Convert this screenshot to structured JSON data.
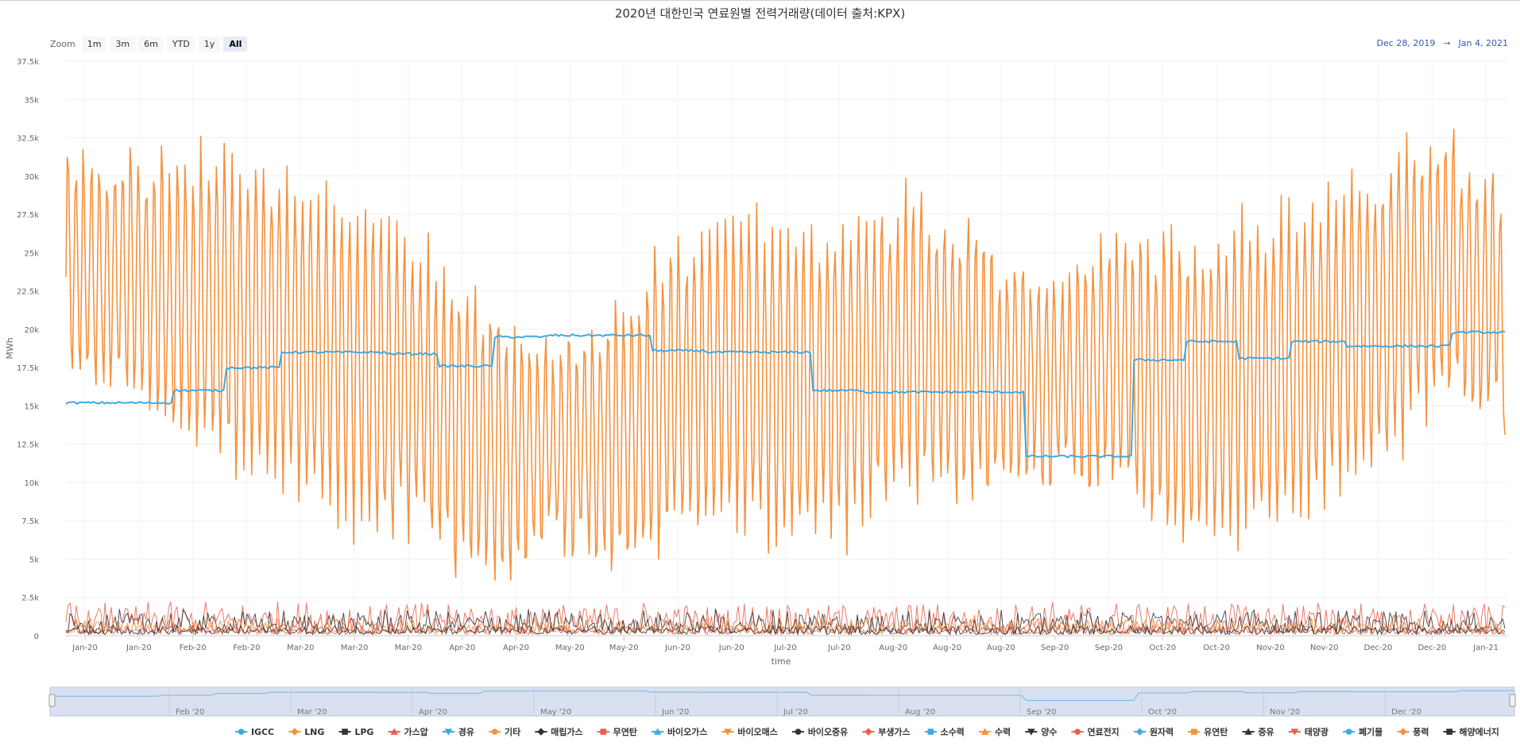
{
  "chart_data": {
    "type": "line",
    "title": "2020년 대한민국 연료원별 전력거래량(데이터 출처:KPX)",
    "xlabel": "time",
    "ylabel": "MWh",
    "ylim": [
      0,
      37500
    ],
    "yticks": [
      "0",
      "2.5k",
      "5k",
      "7.5k",
      "10k",
      "12.5k",
      "15k",
      "17.5k",
      "20k",
      "22.5k",
      "25k",
      "27.5k",
      "30k",
      "32.5k",
      "35k",
      "37.5k"
    ],
    "xticks": [
      "Jan-20",
      "Jan-20",
      "Feb-20",
      "Feb-20",
      "Mar-20",
      "Mar-20",
      "Mar-20",
      "Apr-20",
      "Apr-20",
      "May-20",
      "May-20",
      "Jun-20",
      "Jun-20",
      "Jul-20",
      "Jul-20",
      "Aug-20",
      "Aug-20",
      "Aug-20",
      "Sep-20",
      "Sep-20",
      "Oct-20",
      "Oct-20",
      "Nov-20",
      "Nov-20",
      "Dec-20",
      "Dec-20",
      "Jan-21"
    ],
    "navigator_ticks": [
      "Feb '20",
      "Mar '20",
      "Apr '20",
      "May '20",
      "Jun '20",
      "Jul '20",
      "Aug '20",
      "Sep '20",
      "Oct '20",
      "Nov '20",
      "Dec '20"
    ],
    "grid": true,
    "legend_position": "bottom",
    "series": [
      {
        "name": "IGCC",
        "color": "#3fa9e0",
        "marker": "circle"
      },
      {
        "name": "LNG",
        "color": "#f7913c",
        "marker": "diamond",
        "values": [
          24000,
          23500,
          22000,
          21000,
          20000,
          18000,
          17000,
          14000,
          12000,
          12500,
          13000,
          16000,
          17500,
          16500,
          17000,
          19000,
          18500,
          17000,
          17000,
          18000,
          16000,
          16500,
          17000,
          19000,
          22000,
          24000,
          21000
        ]
      },
      {
        "name": "LPG",
        "color": "#333333",
        "marker": "square"
      },
      {
        "name": "가스압",
        "color": "#e8614b",
        "marker": "triangle"
      },
      {
        "name": "경유",
        "color": "#3fa9e0",
        "marker": "triangle-down"
      },
      {
        "name": "기타",
        "color": "#f7913c",
        "marker": "circle"
      },
      {
        "name": "매립가스",
        "color": "#333333",
        "marker": "diamond"
      },
      {
        "name": "무연탄",
        "color": "#e8614b",
        "marker": "square"
      },
      {
        "name": "바이오가스",
        "color": "#3fa9e0",
        "marker": "triangle"
      },
      {
        "name": "바이오매스",
        "color": "#f7913c",
        "marker": "triangle-down"
      },
      {
        "name": "바이오중유",
        "color": "#333333",
        "marker": "circle"
      },
      {
        "name": "부생가스",
        "color": "#e8614b",
        "marker": "diamond"
      },
      {
        "name": "소수력",
        "color": "#3fa9e0",
        "marker": "square"
      },
      {
        "name": "수력",
        "color": "#f7913c",
        "marker": "triangle"
      },
      {
        "name": "양수",
        "color": "#333333",
        "marker": "triangle-down"
      },
      {
        "name": "연료전지",
        "color": "#e8614b",
        "marker": "circle"
      },
      {
        "name": "원자력",
        "color": "#3fa9e0",
        "marker": "diamond",
        "values": [
          15200,
          15200,
          16000,
          17500,
          18500,
          18500,
          18400,
          17600,
          19500,
          19600,
          19600,
          18600,
          18500,
          18500,
          16000,
          15900,
          15900,
          15900,
          11700,
          11700,
          18000,
          19200,
          18100,
          19200,
          18900,
          18900,
          19800
        ]
      },
      {
        "name": "유연탄",
        "color": "#f7913c",
        "marker": "square"
      },
      {
        "name": "중유",
        "color": "#333333",
        "marker": "triangle"
      },
      {
        "name": "태양광",
        "color": "#e8614b",
        "marker": "triangle-down"
      },
      {
        "name": "폐기물",
        "color": "#3fa9e0",
        "marker": "circle"
      },
      {
        "name": "풍력",
        "color": "#f7913c",
        "marker": "diamond"
      },
      {
        "name": "해양에너지",
        "color": "#333333",
        "marker": "square"
      }
    ]
  },
  "zoom": {
    "label": "Zoom",
    "buttons": [
      "1m",
      "3m",
      "6m",
      "YTD",
      "1y",
      "All"
    ],
    "active": "All"
  },
  "range": {
    "from": "Dec 28, 2019",
    "arrow": "→",
    "to": "Jan 4, 2021"
  }
}
